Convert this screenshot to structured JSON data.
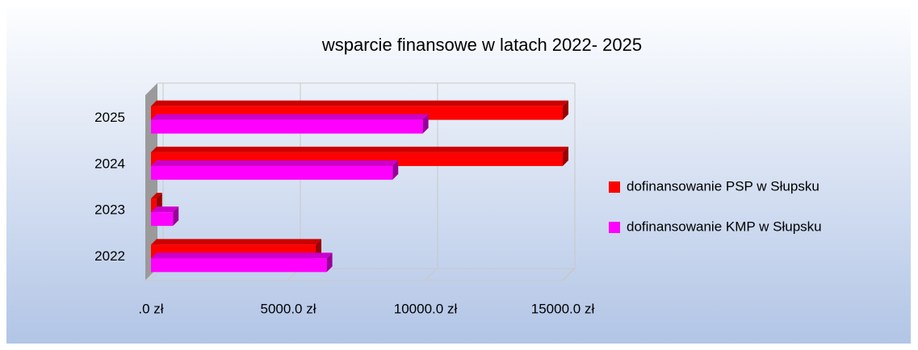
{
  "chart_data": {
    "type": "bar3d_horizontal",
    "title": "wsparcie finansowe w latach 2022- 2025",
    "categories": [
      "2022",
      "2023",
      "2024",
      "2025"
    ],
    "series": [
      {
        "name": "dofinansowanie PSP w Słupsku",
        "color": "#ff0000",
        "values": [
          6000,
          200,
          15000,
          15000
        ]
      },
      {
        "name": "dofinansowanie KMP w Słupsku",
        "color": "#ff00ff",
        "values": [
          6400,
          800,
          8800,
          9900
        ]
      }
    ],
    "xlim": [
      0,
      15000
    ],
    "xticks": [
      {
        "value": 0,
        "label": ".0 zł"
      },
      {
        "value": 5000,
        "label": "5000.0 zł"
      },
      {
        "value": 10000,
        "label": "10000.0 zł"
      },
      {
        "value": 15000,
        "label": "15000.0 zł"
      }
    ],
    "grid": true,
    "legend": "right"
  }
}
